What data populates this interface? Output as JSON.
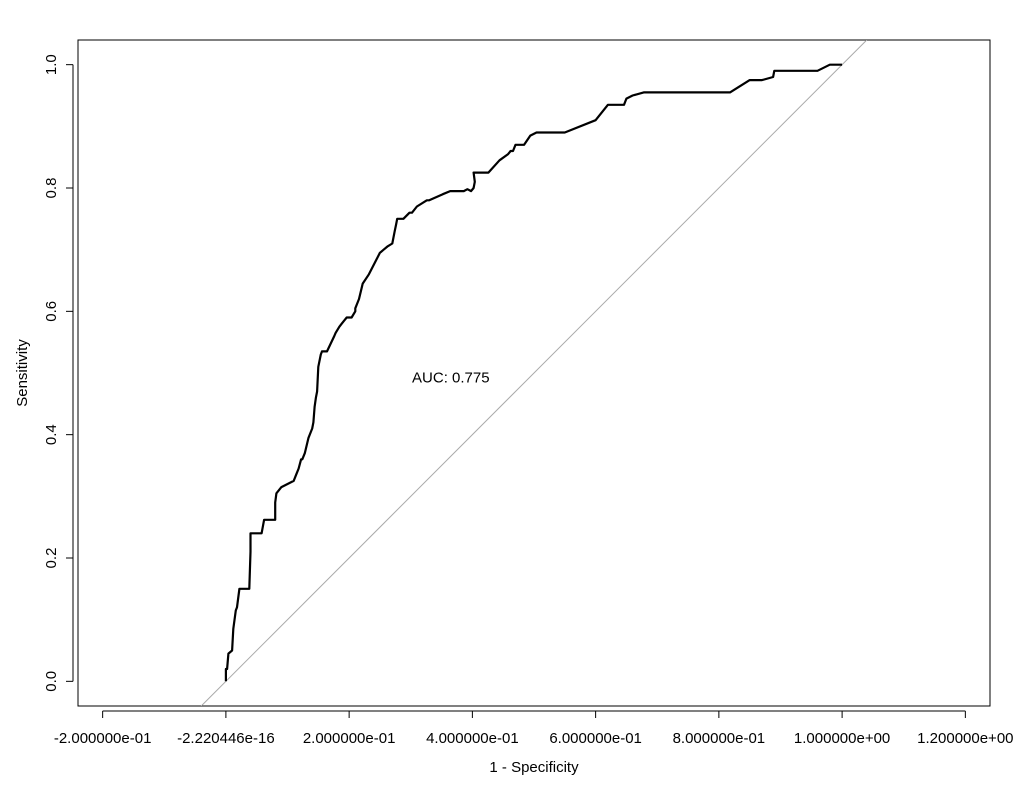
{
  "chart_data": {
    "type": "line",
    "title": "",
    "xlabel": "1 - Specificity",
    "ylabel": "Sensitivity",
    "xlim": [
      -0.24,
      1.24
    ],
    "ylim": [
      -0.04,
      1.04
    ],
    "x_ticks": [
      -0.2,
      0.0,
      0.2,
      0.4,
      0.6,
      0.8,
      1.0,
      1.2
    ],
    "x_tick_labels": [
      "-2.000000e-01",
      "-2.220446e-16",
      "2.000000e-01",
      "4.000000e-01",
      "6.000000e-01",
      "8.000000e-01",
      "1.000000e+00",
      "1.200000e+00"
    ],
    "y_ticks": [
      0.0,
      0.2,
      0.4,
      0.6,
      0.8,
      1.0
    ],
    "y_tick_labels": [
      "0.0",
      "0.2",
      "0.4",
      "0.6",
      "0.8",
      "1.0"
    ],
    "grid": false,
    "legend": "none",
    "annotation": "AUC: 0.775",
    "annotation_at": [
      0.365,
      0.485
    ],
    "reference_line": {
      "x": [
        -0.04,
        1.04
      ],
      "y": [
        -0.04,
        1.04
      ],
      "color": "#aaaaaa"
    },
    "series": [
      {
        "color": "#000000",
        "x": [
          0.0,
          0.0,
          0.002,
          0.004,
          0.004,
          0.01,
          0.012,
          0.016,
          0.018,
          0.022,
          0.022,
          0.038,
          0.04,
          0.04,
          0.044,
          0.048,
          0.058,
          0.062,
          0.08,
          0.08,
          0.082,
          0.09,
          0.11,
          0.114,
          0.118,
          0.122,
          0.124,
          0.128,
          0.134,
          0.14,
          0.142,
          0.144,
          0.146,
          0.148,
          0.15,
          0.154,
          0.156,
          0.164,
          0.176,
          0.178,
          0.184,
          0.188,
          0.192,
          0.196,
          0.204,
          0.21,
          0.21,
          0.216,
          0.222,
          0.232,
          0.25,
          0.256,
          0.262,
          0.27,
          0.274,
          0.276,
          0.278,
          0.278,
          0.288,
          0.298,
          0.302,
          0.31,
          0.326,
          0.33,
          0.33,
          0.352,
          0.364,
          0.38,
          0.386,
          0.392,
          0.398,
          0.402,
          0.404,
          0.402,
          0.426,
          0.444,
          0.458,
          0.462,
          0.466,
          0.47,
          0.476,
          0.484,
          0.484,
          0.494,
          0.504,
          0.52,
          0.54,
          0.546,
          0.55,
          0.6,
          0.62,
          0.646,
          0.65,
          0.66,
          0.678,
          0.7,
          0.722,
          0.736,
          0.818,
          0.85,
          0.87,
          0.888,
          0.89,
          0.96,
          0.98,
          1.0
        ],
        "y": [
          0.0,
          0.02,
          0.02,
          0.045,
          0.045,
          0.05,
          0.085,
          0.115,
          0.12,
          0.15,
          0.15,
          0.15,
          0.21,
          0.24,
          0.24,
          0.24,
          0.24,
          0.262,
          0.262,
          0.29,
          0.305,
          0.315,
          0.325,
          0.335,
          0.345,
          0.36,
          0.36,
          0.37,
          0.395,
          0.41,
          0.42,
          0.445,
          0.46,
          0.47,
          0.51,
          0.53,
          0.535,
          0.535,
          0.56,
          0.565,
          0.575,
          0.58,
          0.585,
          0.59,
          0.59,
          0.6,
          0.605,
          0.62,
          0.645,
          0.66,
          0.695,
          0.7,
          0.705,
          0.71,
          0.73,
          0.74,
          0.75,
          0.75,
          0.75,
          0.76,
          0.76,
          0.77,
          0.78,
          0.78,
          0.78,
          0.79,
          0.795,
          0.795,
          0.795,
          0.798,
          0.795,
          0.8,
          0.81,
          0.825,
          0.825,
          0.845,
          0.855,
          0.86,
          0.86,
          0.87,
          0.87,
          0.87,
          0.87,
          0.885,
          0.89,
          0.89,
          0.89,
          0.89,
          0.89,
          0.91,
          0.935,
          0.935,
          0.945,
          0.95,
          0.955,
          0.955,
          0.955,
          0.955,
          0.955,
          0.975,
          0.975,
          0.98,
          0.99,
          0.99,
          1.0,
          1.0
        ]
      }
    ]
  }
}
